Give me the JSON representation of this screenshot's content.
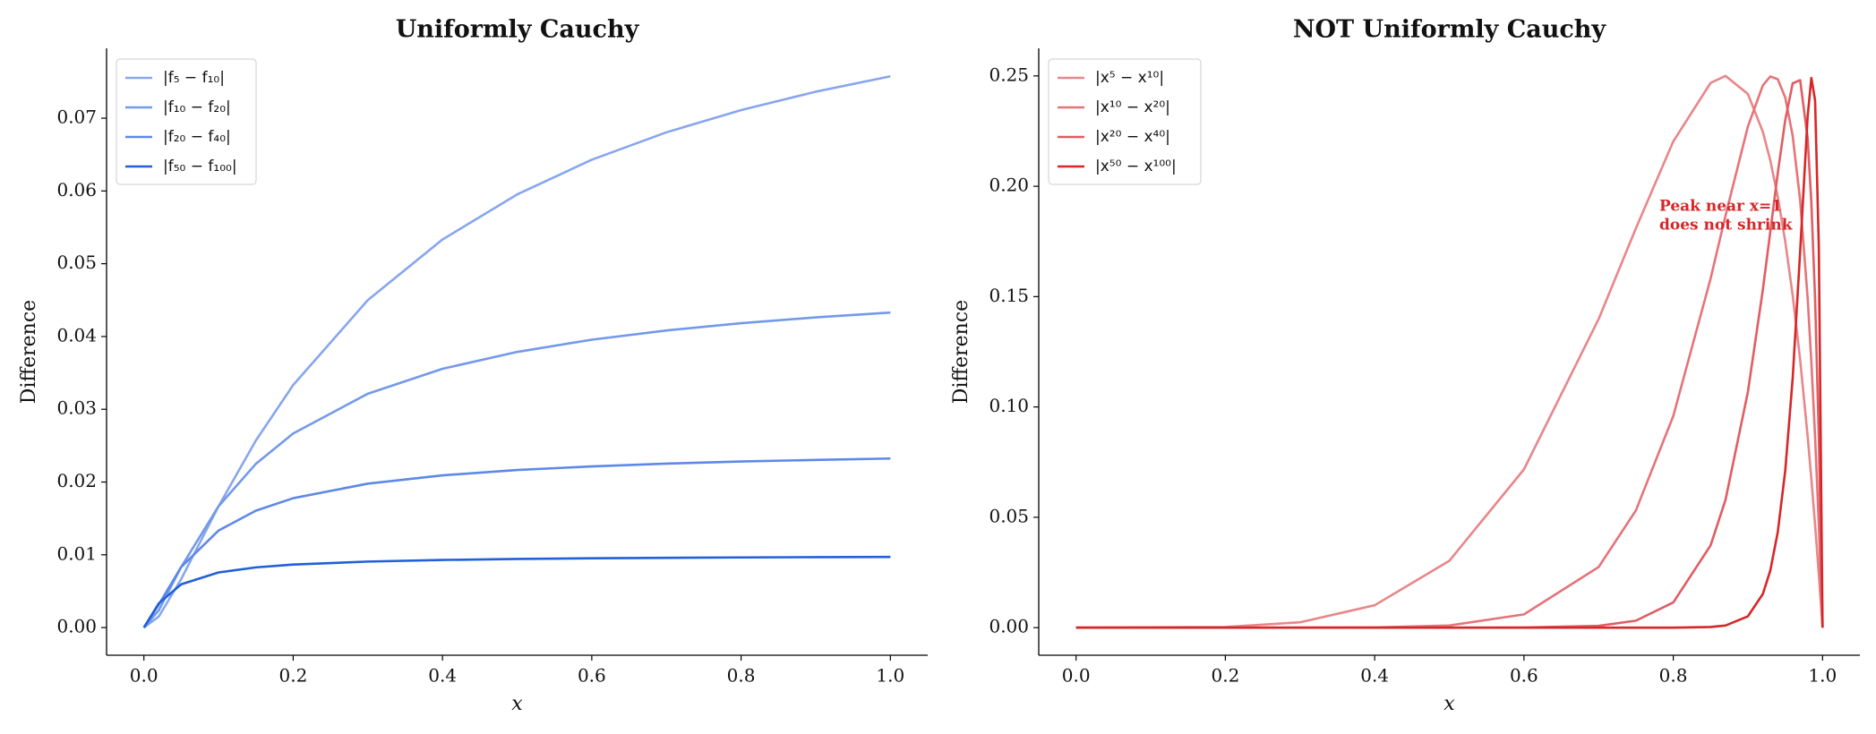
{
  "chart_data": [
    {
      "type": "line",
      "title": "Uniformly Cauchy",
      "xlabel": "x",
      "ylabel": "Difference",
      "x": [
        0,
        0.02,
        0.05,
        0.1,
        0.15,
        0.2,
        0.3,
        0.4,
        0.5,
        0.6,
        0.7,
        0.8,
        0.9,
        1.0
      ],
      "series": [
        {
          "name": "|f₅ − f₁₀|",
          "color": "#88a6ee",
          "values": [
            0,
            0.00152,
            0.00667,
            0.01667,
            0.02571,
            0.03333,
            0.045,
            0.05333,
            0.05952,
            0.06429,
            0.06806,
            0.07111,
            0.07364,
            0.07576
          ]
        },
        {
          "name": "|f₁₀ − f₂₀|",
          "color": "#7399ea",
          "values": [
            0,
            0.00238,
            0.00833,
            0.01667,
            0.0225,
            0.02667,
            0.03214,
            0.03556,
            0.03788,
            0.03956,
            0.04083,
            0.04183,
            0.04263,
            0.04329
          ]
        },
        {
          "name": "|f₂₀ − f₄₀|",
          "color": "#5d89e6",
          "values": [
            0,
            0.00317,
            0.00833,
            0.01333,
            0.01607,
            0.01778,
            0.01978,
            0.02092,
            0.02165,
            0.02215,
            0.02253,
            0.02282,
            0.02304,
            0.02323
          ]
        },
        {
          "name": "|f₅₀ − f₁₀₀|",
          "color": "#2160d8",
          "values": [
            0,
            0.00333,
            0.00595,
            0.00758,
            0.00827,
            0.00866,
            0.00907,
            0.00929,
            0.00943,
            0.00952,
            0.00959,
            0.00964,
            0.00968,
            0.00971
          ]
        }
      ],
      "xlim": [
        -0.05,
        1.05
      ],
      "ylim": [
        -0.0038,
        0.0796
      ],
      "xticks": [
        {
          "value": 0,
          "label": "0.0"
        },
        {
          "value": 0.2,
          "label": "0.2"
        },
        {
          "value": 0.4,
          "label": "0.4"
        },
        {
          "value": 0.6,
          "label": "0.6"
        },
        {
          "value": 0.8,
          "label": "0.8"
        },
        {
          "value": 1,
          "label": "1.0"
        }
      ],
      "yticks": [
        {
          "value": 0,
          "label": "0.00"
        },
        {
          "value": 0.01,
          "label": "0.01"
        },
        {
          "value": 0.02,
          "label": "0.02"
        },
        {
          "value": 0.03,
          "label": "0.03"
        },
        {
          "value": 0.04,
          "label": "0.04"
        },
        {
          "value": 0.05,
          "label": "0.05"
        },
        {
          "value": 0.06,
          "label": "0.06"
        },
        {
          "value": 0.07,
          "label": "0.07"
        }
      ],
      "legend": "upper left",
      "grid": false
    },
    {
      "type": "line",
      "title": "NOT Uniformly Cauchy",
      "xlabel": "x",
      "ylabel": "Difference",
      "annotation": [
        "Peak near x=1",
        "does not shrink"
      ],
      "x": [
        0,
        0.2,
        0.3,
        0.4,
        0.5,
        0.6,
        0.7,
        0.75,
        0.8,
        0.85,
        0.87,
        0.9,
        0.92,
        0.93,
        0.94,
        0.95,
        0.96,
        0.97,
        0.98,
        0.985,
        0.99,
        0.995,
        1.0
      ],
      "series": [
        {
          "name": "|x⁵ − x¹⁰|",
          "color": "#e8868a",
          "values": [
            0,
            0.00032,
            0.00242,
            0.01014,
            0.03027,
            0.07171,
            0.13982,
            0.18099,
            0.22031,
            0.24683,
            0.25,
            0.24181,
            0.22469,
            0.21171,
            0.19529,
            0.17504,
            0.15054,
            0.12131,
            0.08685,
            0.06745,
            0.04661,
            0.02414,
            0
          ]
        },
        {
          "name": "|x¹⁰ − x²⁰|",
          "color": "#e57479",
          "values": [
            0,
            0,
            1e-05,
            0.0001,
            0.00098,
            0.00601,
            0.02745,
            0.05314,
            0.09585,
            0.15812,
            0.18671,
            0.2271,
            0.2457,
            0.24974,
            0.24851,
            0.24025,
            0.22283,
            0.19363,
            0.14947,
            0.12054,
            0.08648,
            0.0465,
            0
          ]
        },
        {
          "name": "|x²⁰ − x⁴⁰|",
          "color": "#e05d62",
          "values": [
            0,
            0,
            0,
            0,
            0,
            4e-05,
            0.0008,
            0.00316,
            0.0114,
            0.03726,
            0.05791,
            0.1068,
            0.15309,
            0.17937,
            0.20595,
            0.22997,
            0.24663,
            0.24808,
            0.2219,
            0.19274,
            0.14893,
            0.08629,
            0
          ]
        },
        {
          "name": "|x⁵⁰ − x¹⁰⁰|",
          "color": "#d62728",
          "values": [
            0,
            0,
            0,
            0,
            0,
            0,
            0,
            0,
            1e-05,
            0.0003,
            0.00095,
            0.00513,
            0.01523,
            0.02585,
            0.04328,
            0.07102,
            0.11302,
            0.17051,
            0.23155,
            0.2491,
            0.23897,
            0.17254,
            0
          ]
        }
      ],
      "xlim": [
        -0.05,
        1.05
      ],
      "ylim": [
        -0.0125,
        0.2625
      ],
      "xticks": [
        {
          "value": 0,
          "label": "0.0"
        },
        {
          "value": 0.2,
          "label": "0.2"
        },
        {
          "value": 0.4,
          "label": "0.4"
        },
        {
          "value": 0.6,
          "label": "0.6"
        },
        {
          "value": 0.8,
          "label": "0.8"
        },
        {
          "value": 1,
          "label": "1.0"
        }
      ],
      "yticks": [
        {
          "value": 0,
          "label": "0.00"
        },
        {
          "value": 0.05,
          "label": "0.05"
        },
        {
          "value": 0.1,
          "label": "0.10"
        },
        {
          "value": 0.15,
          "label": "0.15"
        },
        {
          "value": 0.2,
          "label": "0.20"
        },
        {
          "value": 0.25,
          "label": "0.25"
        }
      ],
      "legend": "upper left",
      "grid": false
    }
  ]
}
